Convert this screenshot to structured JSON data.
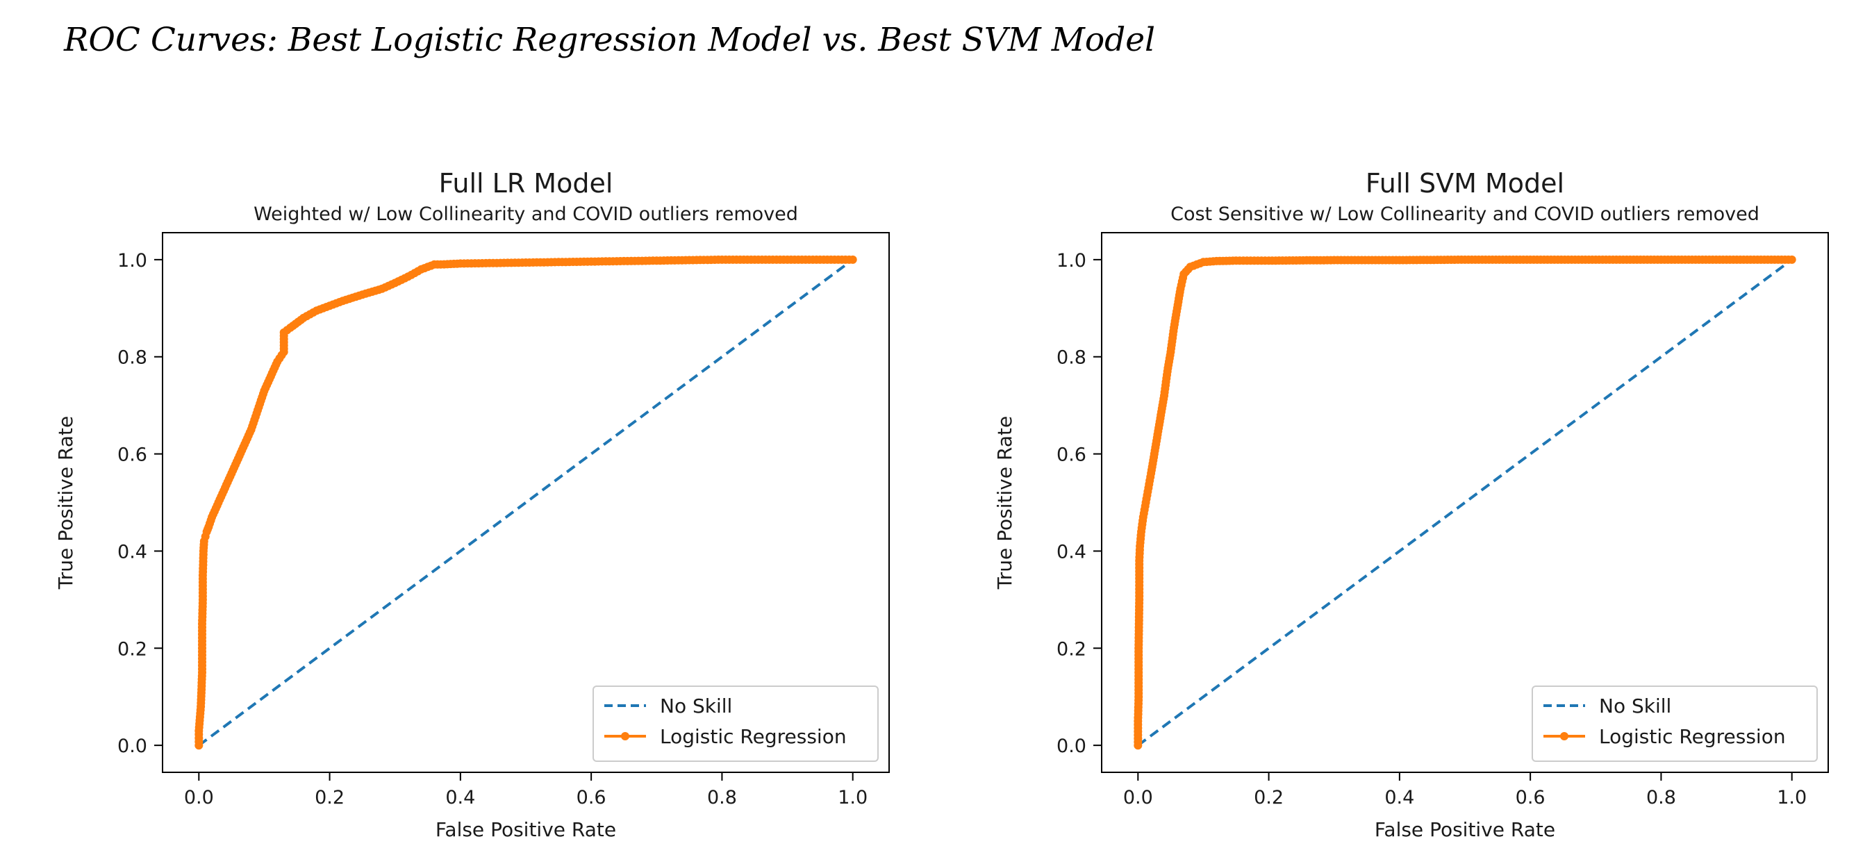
{
  "heading": "ROC Curves: Best Logistic Regression Model vs. Best SVM Model",
  "colors": {
    "no_skill": "#1f77b4",
    "model": "#ff7f0e",
    "axes": "#000000"
  },
  "chart_data": [
    {
      "type": "line",
      "title": "Full LR Model",
      "subtitle": "Weighted w/ Low Collinearity and COVID outliers removed",
      "xlabel": "False Positive Rate",
      "ylabel": "True Positive Rate",
      "xlim": [
        0.0,
        1.0
      ],
      "ylim": [
        0.0,
        1.0
      ],
      "xticks": [
        "0.0",
        "0.2",
        "0.4",
        "0.6",
        "0.8",
        "1.0"
      ],
      "yticks": [
        "0.0",
        "0.2",
        "0.4",
        "0.6",
        "0.8",
        "1.0"
      ],
      "grid": false,
      "legend_position": "lower-right",
      "series": [
        {
          "name": "No Skill",
          "style": "dashed",
          "x": [
            0.0,
            1.0
          ],
          "y": [
            0.0,
            1.0
          ]
        },
        {
          "name": "Logistic Regression",
          "style": "line-markers",
          "x": [
            0.0,
            0.0,
            0.003,
            0.005,
            0.005,
            0.006,
            0.006,
            0.007,
            0.008,
            0.01,
            0.012,
            0.015,
            0.02,
            0.03,
            0.04,
            0.05,
            0.06,
            0.07,
            0.08,
            0.09,
            0.1,
            0.11,
            0.12,
            0.13,
            0.13,
            0.14,
            0.16,
            0.18,
            0.2,
            0.22,
            0.25,
            0.28,
            0.3,
            0.32,
            0.34,
            0.36,
            0.37,
            0.4,
            0.45,
            0.5,
            0.55,
            0.6,
            0.65,
            0.7,
            0.75,
            0.8,
            0.85,
            0.9,
            0.95,
            1.0
          ],
          "y": [
            0.0,
            0.03,
            0.08,
            0.15,
            0.25,
            0.3,
            0.35,
            0.4,
            0.42,
            0.43,
            0.44,
            0.45,
            0.47,
            0.5,
            0.53,
            0.56,
            0.59,
            0.62,
            0.65,
            0.69,
            0.73,
            0.76,
            0.79,
            0.81,
            0.85,
            0.86,
            0.88,
            0.895,
            0.905,
            0.915,
            0.928,
            0.94,
            0.952,
            0.965,
            0.98,
            0.99,
            0.99,
            0.992,
            0.993,
            0.994,
            0.995,
            0.996,
            0.997,
            0.998,
            0.999,
            1.0,
            1.0,
            1.0,
            1.0,
            1.0
          ]
        }
      ]
    },
    {
      "type": "line",
      "title": "Full SVM Model",
      "subtitle": "Cost Sensitive w/ Low Collinearity and COVID outliers removed",
      "xlabel": "False Positive Rate",
      "ylabel": "True Positive Rate",
      "xlim": [
        0.0,
        1.0
      ],
      "ylim": [
        0.0,
        1.0
      ],
      "xticks": [
        "0.0",
        "0.2",
        "0.4",
        "0.6",
        "0.8",
        "1.0"
      ],
      "yticks": [
        "0.0",
        "0.2",
        "0.4",
        "0.6",
        "0.8",
        "1.0"
      ],
      "grid": false,
      "legend_position": "lower-right",
      "series": [
        {
          "name": "No Skill",
          "style": "dashed",
          "x": [
            0.0,
            1.0
          ],
          "y": [
            0.0,
            1.0
          ]
        },
        {
          "name": "Logistic Regression",
          "style": "line-markers",
          "x": [
            0.0,
            0.0,
            0.001,
            0.001,
            0.002,
            0.002,
            0.003,
            0.005,
            0.008,
            0.012,
            0.016,
            0.02,
            0.025,
            0.03,
            0.035,
            0.04,
            0.045,
            0.05,
            0.055,
            0.06,
            0.065,
            0.07,
            0.08,
            0.09,
            0.1,
            0.12,
            0.15,
            0.2,
            0.3,
            0.4,
            0.5,
            0.6,
            0.7,
            0.8,
            0.9,
            1.0
          ],
          "y": [
            0.0,
            0.05,
            0.1,
            0.2,
            0.3,
            0.38,
            0.41,
            0.44,
            0.47,
            0.5,
            0.53,
            0.56,
            0.6,
            0.64,
            0.68,
            0.72,
            0.77,
            0.81,
            0.86,
            0.9,
            0.94,
            0.97,
            0.985,
            0.99,
            0.995,
            0.997,
            0.998,
            0.998,
            0.999,
            0.999,
            1.0,
            1.0,
            1.0,
            1.0,
            1.0,
            1.0
          ]
        }
      ]
    }
  ]
}
